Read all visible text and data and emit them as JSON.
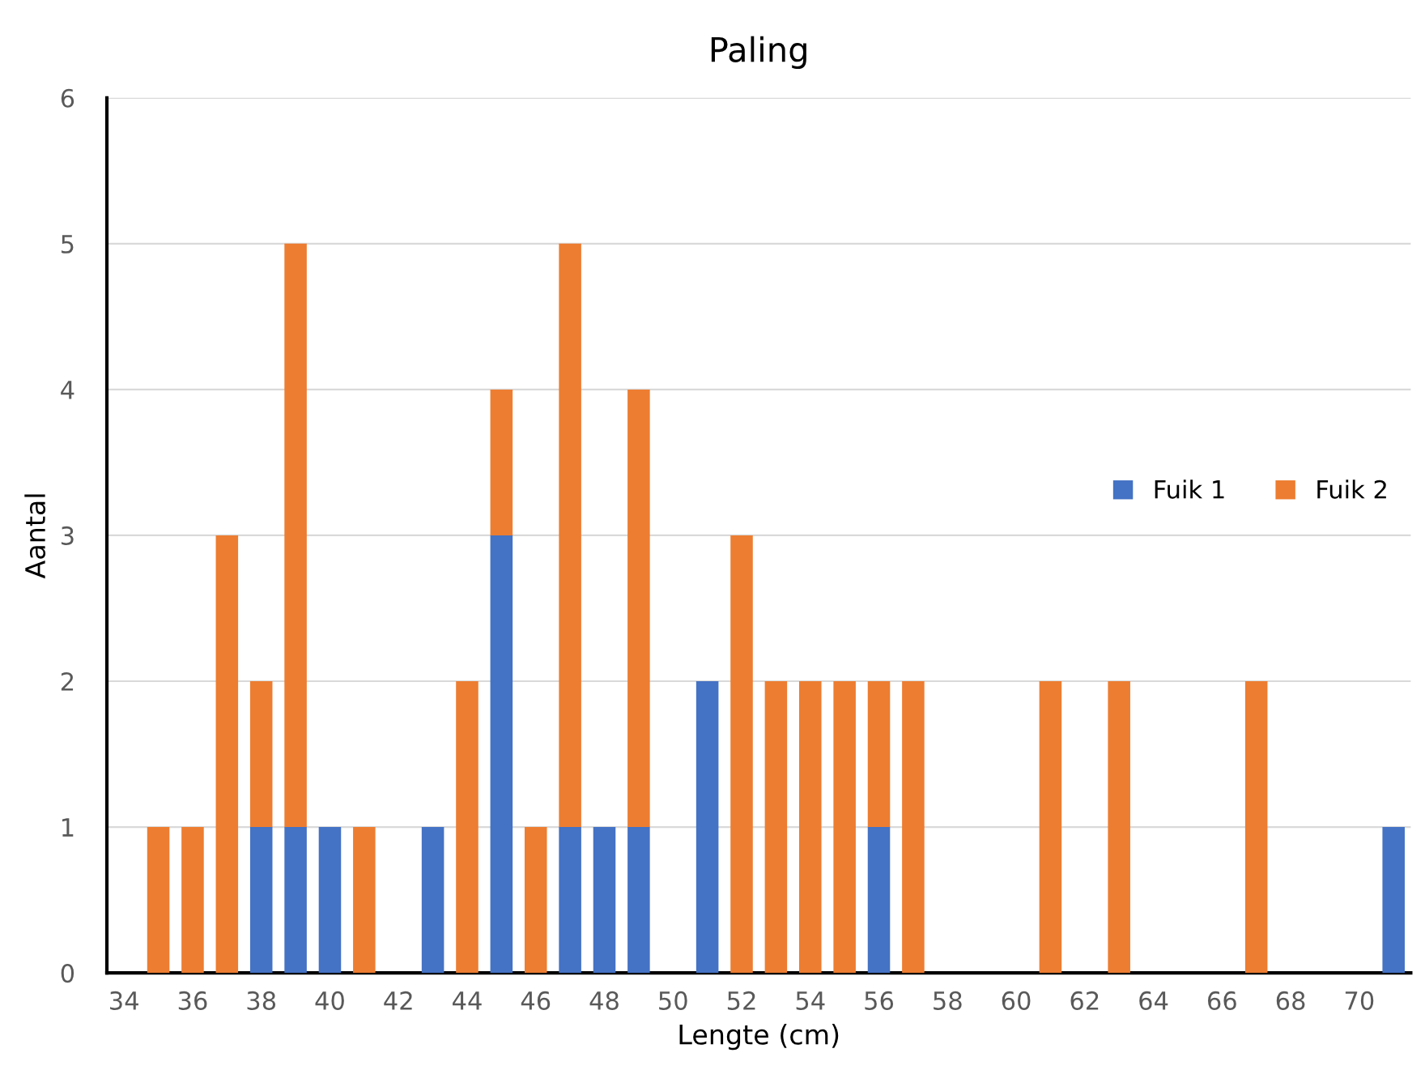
{
  "chart_data": {
    "type": "bar",
    "title": "Paling",
    "xlabel": "Lengte (cm)",
    "ylabel": "Aantal",
    "categories": [
      "34",
      null,
      "36",
      null,
      "38",
      null,
      "40",
      null,
      "42",
      null,
      "44",
      null,
      "46",
      null,
      "48",
      null,
      "50",
      null,
      "52",
      null,
      "54",
      null,
      "56",
      null,
      "58",
      null,
      "60",
      null,
      "62",
      null,
      "64",
      null,
      "66",
      null,
      "68",
      null,
      "70",
      null
    ],
    "stacked": true,
    "series": [
      {
        "name": "Fuik 1",
        "color": "#4472c4",
        "values": [
          0,
          0,
          0,
          0,
          1,
          1,
          1,
          0,
          0,
          1,
          0,
          3,
          0,
          1,
          1,
          1,
          0,
          2,
          0,
          0,
          0,
          0,
          1,
          0,
          0,
          0,
          0,
          0,
          0,
          0,
          0,
          0,
          0,
          0,
          0,
          0,
          0,
          1
        ]
      },
      {
        "name": "Fuik 2",
        "color": "#ed7d31",
        "values": [
          0,
          1,
          1,
          3,
          1,
          4,
          0,
          1,
          0,
          0,
          2,
          1,
          1,
          4,
          0,
          3,
          0,
          0,
          3,
          2,
          2,
          2,
          1,
          2,
          0,
          0,
          0,
          2,
          0,
          2,
          0,
          0,
          0,
          2,
          0,
          0,
          0,
          0
        ]
      }
    ],
    "ylim": [
      0,
      6
    ],
    "yticks": [
      0,
      1,
      2,
      3,
      4,
      5,
      6
    ],
    "grid": "y",
    "legend": "right"
  }
}
